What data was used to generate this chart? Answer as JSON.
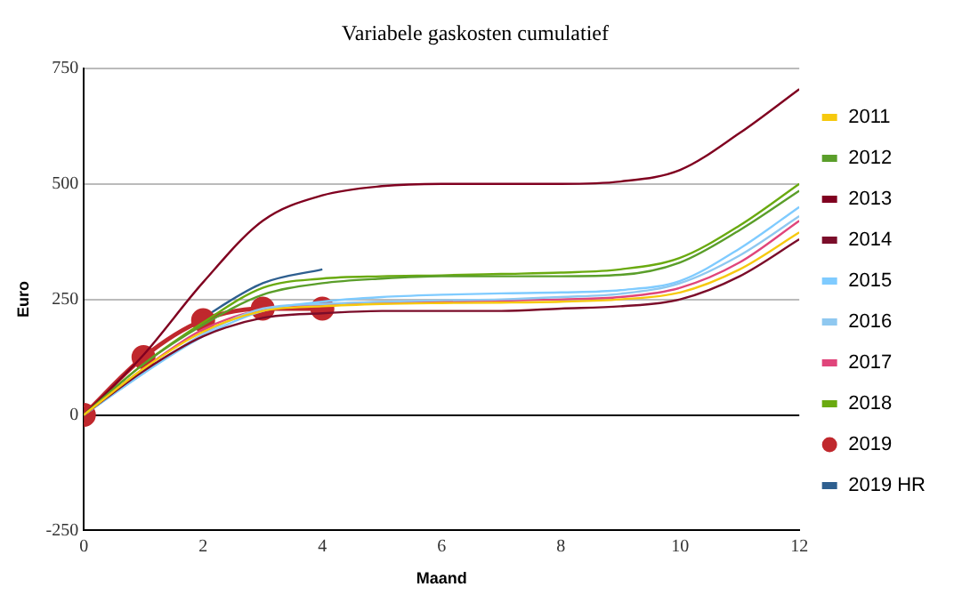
{
  "chart_data": {
    "type": "line",
    "title": "Variabele gaskosten cumulatief",
    "xlabel": "Maand",
    "ylabel": "Euro",
    "x": [
      0,
      1,
      2,
      3,
      4,
      5,
      6,
      7,
      8,
      9,
      10,
      11,
      12
    ],
    "xlim": [
      0,
      12
    ],
    "xticks": [
      0,
      2,
      4,
      6,
      8,
      10,
      12
    ],
    "ylim": [
      -250,
      750
    ],
    "yticks": [
      -250,
      0,
      250,
      500,
      750
    ],
    "grid": "y",
    "legend": "right",
    "marker": "none",
    "line_style": "solid",
    "series": [
      {
        "name": "2011",
        "color": "#f6c90e",
        "values": [
          0,
          100,
          180,
          225,
          235,
          240,
          242,
          243,
          245,
          250,
          265,
          315,
          395
        ]
      },
      {
        "name": "2012",
        "color": "#5a9e2a",
        "values": [
          0,
          110,
          195,
          260,
          285,
          295,
          300,
          300,
          300,
          303,
          330,
          400,
          485
        ]
      },
      {
        "name": "2013",
        "color": "#800020",
        "values": [
          0,
          130,
          287,
          420,
          475,
          495,
          500,
          500,
          500,
          505,
          530,
          610,
          705
        ]
      },
      {
        "name": "2014",
        "color": "#7b0d2a",
        "values": [
          0,
          95,
          170,
          210,
          220,
          225,
          225,
          225,
          230,
          235,
          250,
          300,
          380
        ]
      },
      {
        "name": "2015",
        "color": "#7fcbff",
        "values": [
          0,
          90,
          170,
          225,
          245,
          255,
          260,
          263,
          265,
          270,
          290,
          360,
          450
        ]
      },
      {
        "name": "2016",
        "color": "#8fc8f0",
        "values": [
          0,
          90,
          175,
          230,
          240,
          245,
          248,
          250,
          255,
          262,
          285,
          345,
          430
        ]
      },
      {
        "name": "2017",
        "color": "#e0457b",
        "values": [
          0,
          100,
          185,
          228,
          238,
          243,
          245,
          247,
          250,
          255,
          275,
          330,
          420
        ]
      },
      {
        "name": "2018",
        "color": "#6aaa10",
        "values": [
          0,
          110,
          200,
          275,
          295,
          300,
          302,
          305,
          308,
          315,
          340,
          410,
          500
        ]
      },
      {
        "name": "2019",
        "color": "#c0282d",
        "marker": "circle",
        "values": [
          0,
          125,
          205,
          230,
          230,
          null,
          null,
          null,
          null,
          null,
          null,
          null,
          null
        ]
      },
      {
        "name": "2019 HR",
        "color": "#2e5f8f",
        "values": [
          0,
          125,
          210,
          285,
          315,
          null,
          null,
          null,
          null,
          null,
          null,
          null,
          null
        ]
      }
    ]
  }
}
